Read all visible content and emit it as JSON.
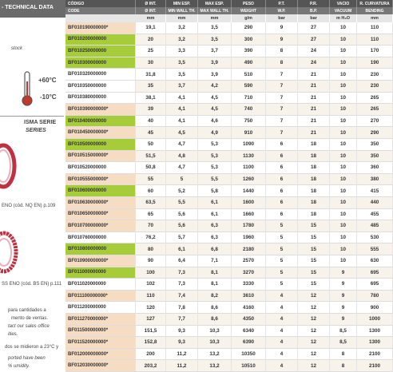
{
  "left_panel": {
    "header": "- TECHNICAL DATA",
    "stock_note": "stock",
    "temp_max": "+60°C",
    "temp_min": "-10°C",
    "series_es": "ISMA SERIE",
    "series_en": "SERIES",
    "link_1": "ENO (cód. NQ EN) p.109",
    "link_2": "SS ENO (cód. BS EN) p.111",
    "notes": [
      "para cantidades a",
      "mento de ventas.",
      "tact our sales office",
      "ities.",
      "dos se midieron a 23°C y",
      "ported have been",
      "% umidity."
    ]
  },
  "table": {
    "header_es": [
      "CÓDIGO",
      "Ø INT.",
      "MIN ESP.",
      "MAX ESP.",
      "PESO",
      "P.T.",
      "P.R.",
      "VACIO",
      "R. CURVATURA"
    ],
    "header_en": [
      "CODE",
      "Ø INT.",
      "MIN WALL TH.",
      "MAX WALL TH.",
      "WEIGHT",
      "W.P.",
      "B.P.",
      "VACUUM",
      "BENDING"
    ],
    "units": [
      "mm",
      "mm",
      "mm",
      "g/m",
      "bar",
      "bar",
      "m H₂O",
      "mm"
    ],
    "code_colors": [
      "#f6dcc3",
      "#a6cc3a",
      "#a6cc3a",
      "#a6cc3a",
      "#ffffff",
      "#ffffff",
      "#ffffff",
      "#f6dcc3",
      "#a6cc3a",
      "#f6dcc3",
      "#a6cc3a",
      "#f6dcc3",
      "#ffffff",
      "#f6dcc3",
      "#a6cc3a",
      "#f6dcc3",
      "#f6dcc3",
      "#f6dcc3",
      "#ffffff",
      "#a6cc3a",
      "#f6dcc3",
      "#a6cc3a",
      "#ffffff",
      "#f6dcc3",
      "#ffffff",
      "#f6dcc3",
      "#f6dcc3",
      "#f6dcc3",
      "#f6dcc3",
      "#f6dcc3"
    ],
    "rows": [
      [
        "BF010190000000*",
        "19,1",
        "3,2",
        "3,5",
        "290",
        "9",
        "27",
        "10",
        "110"
      ],
      [
        "BF010200000000",
        "20",
        "3,2",
        "3,5",
        "300",
        "9",
        "27",
        "10",
        "110"
      ],
      [
        "BF010250000000",
        "25",
        "3,3",
        "3,7",
        "390",
        "8",
        "24",
        "10",
        "170"
      ],
      [
        "BF010300000000",
        "30",
        "3,5",
        "3,9",
        "490",
        "8",
        "24",
        "10",
        "190"
      ],
      [
        "BF010320000000",
        "31,8",
        "3,5",
        "3,9",
        "510",
        "7",
        "21",
        "10",
        "230"
      ],
      [
        "BF010350000000",
        "35",
        "3,7",
        "4,2",
        "590",
        "7",
        "21",
        "10",
        "230"
      ],
      [
        "BF010380000000",
        "38,1",
        "4,1",
        "4,5",
        "710",
        "7",
        "21",
        "10",
        "265"
      ],
      [
        "BF010390000000*",
        "39",
        "4,1",
        "4,5",
        "740",
        "7",
        "21",
        "10",
        "265"
      ],
      [
        "BF010400000000",
        "40",
        "4,1",
        "4,6",
        "750",
        "7",
        "21",
        "10",
        "270"
      ],
      [
        "BF010450000000*",
        "45",
        "4,5",
        "4,9",
        "910",
        "7",
        "21",
        "10",
        "290"
      ],
      [
        "BF010500000000",
        "50",
        "4,7",
        "5,3",
        "1090",
        "6",
        "18",
        "10",
        "350"
      ],
      [
        "BF010515000000*",
        "51,5",
        "4,8",
        "5,3",
        "1130",
        "6",
        "18",
        "10",
        "350"
      ],
      [
        "BF010520000000",
        "50,8",
        "4,7",
        "5,3",
        "1100",
        "6",
        "18",
        "10",
        "360"
      ],
      [
        "BF010555000000*",
        "55",
        "5",
        "5,5",
        "1260",
        "6",
        "18",
        "10",
        "380"
      ],
      [
        "BF010600000000",
        "60",
        "5,2",
        "5,8",
        "1440",
        "6",
        "18",
        "10",
        "415"
      ],
      [
        "BF010630000000*",
        "63,5",
        "5,5",
        "6,1",
        "1600",
        "6",
        "18",
        "10",
        "440"
      ],
      [
        "BF010650000000*",
        "65",
        "5,6",
        "6,1",
        "1660",
        "6",
        "18",
        "10",
        "455"
      ],
      [
        "BF010700000000*",
        "70",
        "5,6",
        "6,3",
        "1780",
        "5",
        "15",
        "10",
        "485"
      ],
      [
        "BF010760000000",
        "76,2",
        "5,7",
        "6,3",
        "1960",
        "5",
        "15",
        "10",
        "530"
      ],
      [
        "BF010800000000",
        "80",
        "6,1",
        "6,8",
        "2180",
        "5",
        "15",
        "10",
        "555"
      ],
      [
        "BF010900000000*",
        "90",
        "6,4",
        "7,1",
        "2570",
        "5",
        "15",
        "10",
        "630"
      ],
      [
        "BF011000000000",
        "100",
        "7,3",
        "8,1",
        "3270",
        "5",
        "15",
        "9",
        "695"
      ],
      [
        "BF011020000000",
        "102",
        "7,3",
        "8,1",
        "3330",
        "5",
        "15",
        "9",
        "695"
      ],
      [
        "BF011100000000*",
        "110",
        "7,4",
        "8,2",
        "3610",
        "4",
        "12",
        "9",
        "780"
      ],
      [
        "BF011200000000",
        "120",
        "7,8",
        "8,6",
        "4160",
        "4",
        "12",
        "9",
        "900"
      ],
      [
        "BF011270000000*",
        "127",
        "7,7",
        "8,6",
        "4350",
        "4",
        "12",
        "9",
        "1000"
      ],
      [
        "BF011500000000*",
        "151,5",
        "9,3",
        "10,3",
        "6340",
        "4",
        "12",
        "8,5",
        "1300"
      ],
      [
        "BF011520000000*",
        "152,8",
        "9,3",
        "10,3",
        "6390",
        "4",
        "12",
        "8,5",
        "1300"
      ],
      [
        "BF012000000000*",
        "200",
        "11,2",
        "13,2",
        "10350",
        "4",
        "12",
        "8",
        "2100"
      ],
      [
        "BF012030000000*",
        "203,2",
        "11,2",
        "13,2",
        "10510",
        "4",
        "12",
        "8",
        "2100"
      ]
    ]
  }
}
